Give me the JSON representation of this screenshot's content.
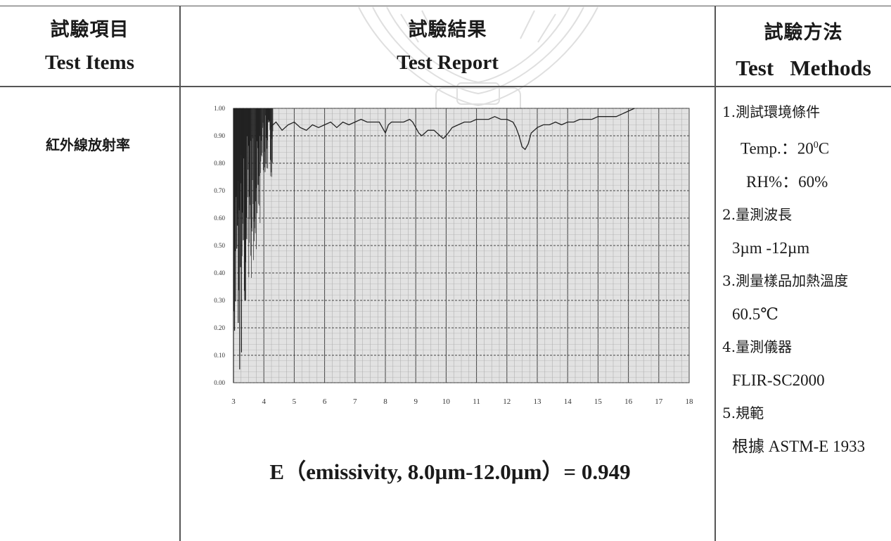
{
  "header": {
    "col1_zh": "試驗項目",
    "col1_en": "Test Items",
    "col2_zh": "試驗結果",
    "col2_en": "Test Report",
    "col3_zh": "試驗方法",
    "col3_en": "Test   Methods"
  },
  "item_name": "紅外線放射率",
  "result_equation": "E（emissivity, 8.0µm-12.0µm）= 0.949",
  "methods": {
    "l1": "1.測試環境條件",
    "temp_prefix": "Temp.：20",
    "temp_sup": "0",
    "temp_suffix": "C",
    "rh": "RH%：60%",
    "l2": "2.量測波長",
    "wavelength": "3µm -12µm",
    "l3": "3.測量樣品加熱溫度",
    "heat_temp": "60.5℃",
    "l4": "4.量測儀器",
    "instrument": "FLIR-SC2000",
    "l5": "5.規範",
    "standard": "根據 ASTM-E 1933"
  },
  "chart_data": {
    "type": "line",
    "xlabel": "",
    "ylabel": "",
    "xlim": [
      3,
      18
    ],
    "ylim": [
      0.0,
      1.0
    ],
    "x_ticks": [
      "3",
      "4",
      "5",
      "6",
      "7",
      "8",
      "9",
      "10",
      "11",
      "12",
      "13",
      "14",
      "15",
      "16",
      "17",
      "18"
    ],
    "y_ticks": [
      "1.00",
      "0.90",
      "0.80",
      "0.70",
      "0.60",
      "0.50",
      "0.40",
      "0.30",
      "0.20",
      "0.10",
      "0.00"
    ],
    "grid": true,
    "series": [
      {
        "x": [
          4.2,
          4.4,
          4.6,
          4.8,
          5.0,
          5.2,
          5.4,
          5.6,
          5.8,
          6.0,
          6.2,
          6.4,
          6.6,
          6.8,
          7.0,
          7.2,
          7.4,
          7.6,
          7.8,
          7.9,
          8.0,
          8.1,
          8.2,
          8.4,
          8.6,
          8.8,
          8.9,
          9.0,
          9.1,
          9.2,
          9.4,
          9.6,
          9.8,
          9.9,
          10.0,
          10.2,
          10.4,
          10.6,
          10.8,
          11.0,
          11.2,
          11.4,
          11.6,
          11.8,
          12.0,
          12.2,
          12.3,
          12.4,
          12.5,
          12.6,
          12.7,
          12.8,
          13.0,
          13.2,
          13.4,
          13.6,
          13.8,
          14.0,
          14.2,
          14.4,
          14.6,
          14.8,
          15.0,
          15.2,
          15.4,
          15.6,
          15.8,
          16.0,
          16.2
        ],
        "y": [
          0.93,
          0.95,
          0.92,
          0.94,
          0.95,
          0.93,
          0.92,
          0.94,
          0.93,
          0.94,
          0.95,
          0.93,
          0.95,
          0.94,
          0.95,
          0.96,
          0.95,
          0.95,
          0.95,
          0.93,
          0.91,
          0.94,
          0.95,
          0.95,
          0.95,
          0.96,
          0.95,
          0.93,
          0.91,
          0.9,
          0.92,
          0.92,
          0.9,
          0.89,
          0.9,
          0.93,
          0.94,
          0.95,
          0.95,
          0.96,
          0.96,
          0.96,
          0.97,
          0.96,
          0.96,
          0.95,
          0.93,
          0.9,
          0.86,
          0.85,
          0.87,
          0.91,
          0.93,
          0.94,
          0.94,
          0.95,
          0.94,
          0.95,
          0.95,
          0.96,
          0.96,
          0.96,
          0.97,
          0.97,
          0.97,
          0.97,
          0.98,
          0.99,
          1.0
        ]
      }
    ]
  },
  "colors": {
    "line": "#222222",
    "plot_bg": "#e2e2e2",
    "grid": "#555555"
  }
}
